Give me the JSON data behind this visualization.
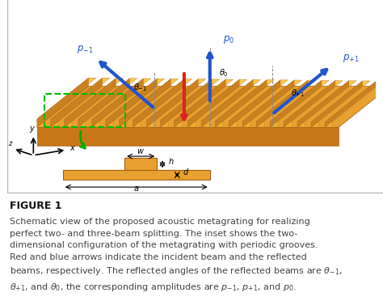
{
  "figure_title": "FIGURE 1",
  "caption_line1": "Schematic view of the proposed acoustic metagrating for realizing",
  "caption_line2": "perfect two- and three-beam splitting. The inset shows the two-",
  "caption_line3": "dimensional configuration of the metagrating with periodic grooves.",
  "caption_line4": "Red and blue arrows indicate the incident beam and the reflected",
  "caption_line5": "beams, respectively. The reflected angles of the reflected beams are $\\theta_{-1}$,",
  "caption_line6": "$\\theta_{+1}$, and $\\theta_0$, the corresponding amplitudes are $p_{-1}$, $p_{+1}$, and $p_0$.",
  "bg_color": "#7DDDE8",
  "slab_face_color": "#E8A030",
  "slab_top_color": "#F5C060",
  "slab_side_color": "#C87818",
  "groove_color": "#F0B040",
  "groove_dark": "#D09028",
  "white_bg": "#FFFFFF",
  "border_color": "#BBBBBB",
  "title_color": "#111111",
  "caption_color": "#444444",
  "red_arrow": "#DD2222",
  "blue_arrow": "#2255CC",
  "green_arrow": "#00AA00",
  "green_dashed": "#00BB00",
  "black": "#000000"
}
